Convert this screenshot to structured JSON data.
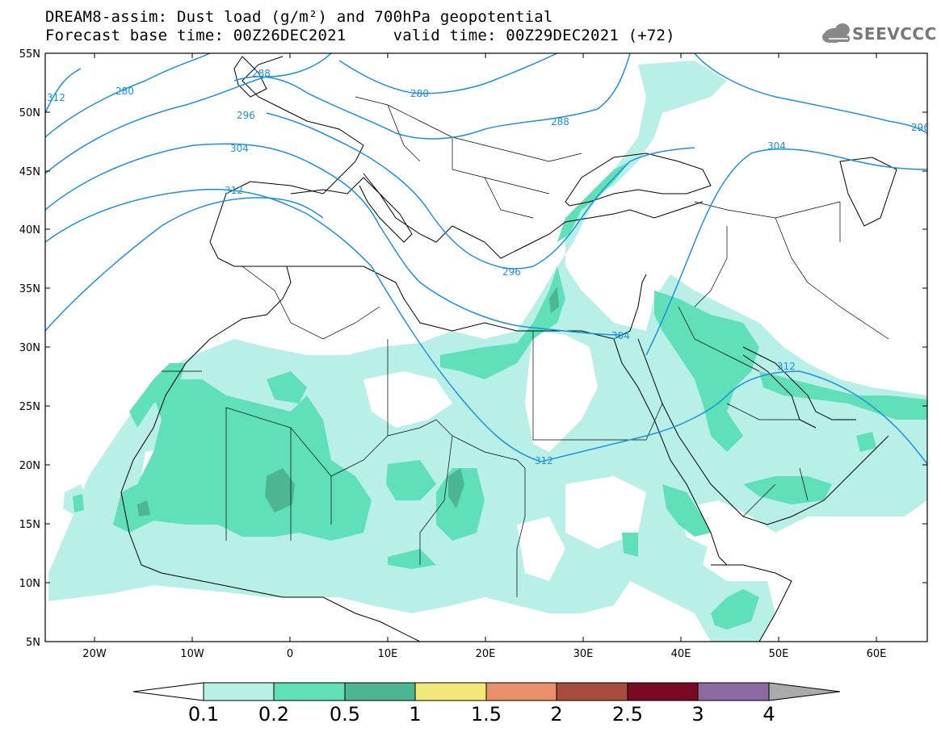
{
  "title": {
    "line1": "DREAM8-assim: Dust load (g/m²) and 700hPa geopotential",
    "line2": "Forecast base time: 00Z26DEC2021     valid time: 00Z29DEC2021 (+72)"
  },
  "logo": {
    "text": "SEEVCCC",
    "icon": "cloud-logo-icon"
  },
  "map": {
    "lon_range": [
      -25,
      65
    ],
    "lat_range": [
      5,
      55
    ],
    "lat_ticks": [
      "55N",
      "50N",
      "45N",
      "40N",
      "35N",
      "30N",
      "25N",
      "20N",
      "15N",
      "10N",
      "5N"
    ],
    "lon_ticks": [
      "20W",
      "10W",
      "0",
      "10E",
      "20E",
      "30E",
      "40E",
      "50E",
      "60E"
    ],
    "geopotential_labels": [
      "312",
      "280",
      "288",
      "280",
      "296",
      "288",
      "304",
      "312",
      "296",
      "304",
      "312",
      "304",
      "312",
      "296"
    ],
    "colors": {
      "contour": "#1e90e0",
      "coast": "#000000"
    }
  },
  "colorbar": {
    "labels": [
      "0.1",
      "0.2",
      "0.5",
      "1",
      "1.5",
      "2",
      "2.5",
      "3",
      "4"
    ],
    "colors": [
      "#ffffff",
      "#b8efe6",
      "#5fe0b8",
      "#4cb692",
      "#f0e878",
      "#e99068",
      "#a84c3c",
      "#7a0a24",
      "#8a6aa0",
      "#aaaaaa"
    ]
  }
}
